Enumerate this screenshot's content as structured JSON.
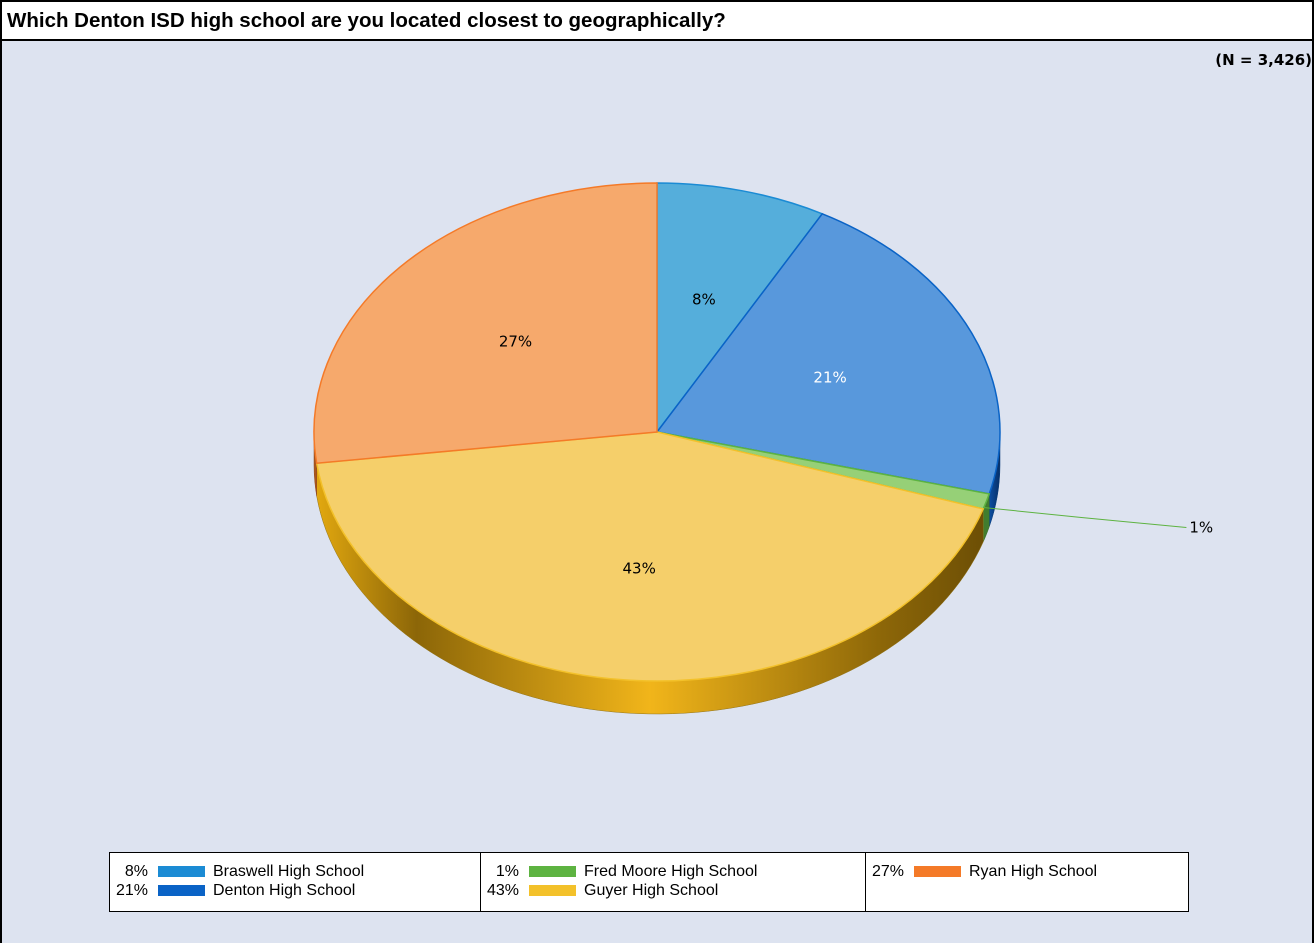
{
  "title": "Which Denton ISD high school are you located closest to geographically?",
  "sample_size_label": "(N = 3,426)",
  "chart_data": {
    "type": "pie",
    "style": "3d",
    "title": "Which Denton ISD high school are you located closest to geographically?",
    "annotation": "(N = 3,426)",
    "legend_position": "bottom",
    "slices": [
      {
        "name": "Braswell High School",
        "value": 8,
        "label": "8%",
        "color": "#55aedb",
        "legend_color": "#1b8bd4"
      },
      {
        "name": "Denton High School",
        "value": 21,
        "label": "21%",
        "color": "#5898dc",
        "legend_color": "#0a63c6"
      },
      {
        "name": "Fred Moore High School",
        "value": 1,
        "label": "1%",
        "color": "#96d077",
        "legend_color": "#5db341"
      },
      {
        "name": "Guyer High School",
        "value": 43,
        "label": "43%",
        "color": "#f5cf6a",
        "legend_color": "#f3c12a"
      },
      {
        "name": "Ryan High School",
        "value": 27,
        "label": "27%",
        "color": "#f6a96c",
        "legend_color": "#f47a28"
      }
    ]
  },
  "legend": {
    "columns": [
      [
        {
          "pct": "8%",
          "name": "Braswell High School",
          "color": "#1b8bd4"
        },
        {
          "pct": "21%",
          "name": "Denton High School",
          "color": "#0a63c6"
        }
      ],
      [
        {
          "pct": "1%",
          "name": "Fred Moore High School",
          "color": "#5db341"
        },
        {
          "pct": "43%",
          "name": "Guyer High School",
          "color": "#f3c12a"
        }
      ],
      [
        {
          "pct": "27%",
          "name": "Ryan High School",
          "color": "#f47a28"
        }
      ]
    ]
  }
}
